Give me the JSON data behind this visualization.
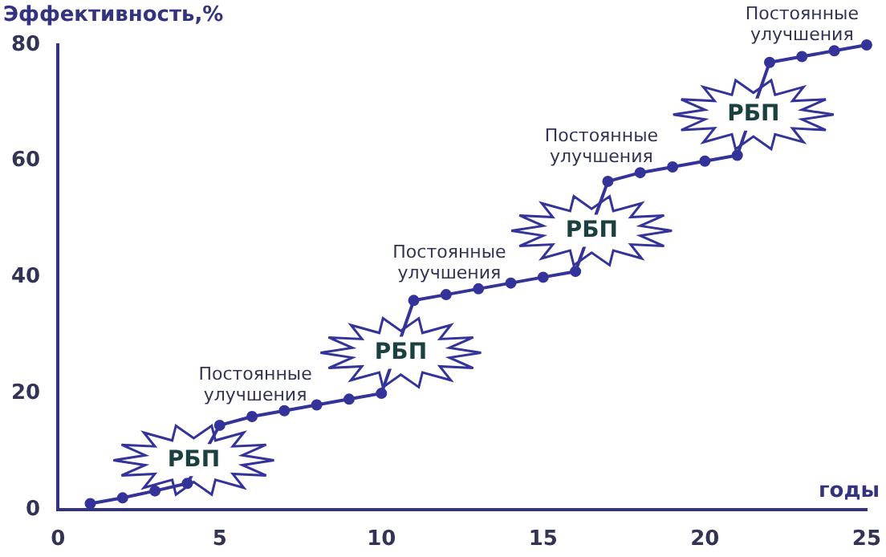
{
  "chart_data": {
    "type": "line",
    "xlabel": "годы",
    "ylabel": "Эффективность,%",
    "x": [
      1,
      2,
      3,
      4,
      5,
      6,
      7,
      8,
      9,
      10,
      11,
      12,
      13,
      14,
      15,
      16,
      17,
      18,
      19,
      20,
      21,
      22,
      23,
      24,
      25
    ],
    "series": [
      {
        "color": "#333399",
        "values": [
          1,
          2,
          3.2,
          4.5,
          14.5,
          16,
          17,
          18,
          19,
          20,
          36,
          37,
          38,
          39,
          40,
          41,
          56.5,
          58,
          59,
          60,
          61,
          77,
          78,
          79,
          80
        ]
      }
    ],
    "xlim": [
      0,
      25
    ],
    "xticks": [
      0,
      5,
      10,
      15,
      20,
      25
    ],
    "ylim": [
      0,
      80
    ],
    "yticks": [
      0,
      20,
      40,
      60,
      80
    ],
    "grid": false,
    "legend": false,
    "marker": "circle",
    "line_style": "solid",
    "annotations": [
      {
        "text": "РБП",
        "x": 4.2,
        "y": 8.5
      },
      {
        "text": "РБП",
        "x": 10.6,
        "y": 27
      },
      {
        "text": "РБП",
        "x": 16.5,
        "y": 48
      },
      {
        "text": "РБП",
        "x": 21.5,
        "y": 68
      },
      {
        "text": "Постоянные\nулучшения",
        "x": 6.1,
        "y": 16
      },
      {
        "text": "Постоянные\nулучшения",
        "x": 12.1,
        "y": 37
      },
      {
        "text": "Постоянные\nулучшения",
        "x": 16.8,
        "y": 57
      },
      {
        "text": "Постоянные\nулучшения",
        "x": 23,
        "y": 78
      }
    ]
  }
}
